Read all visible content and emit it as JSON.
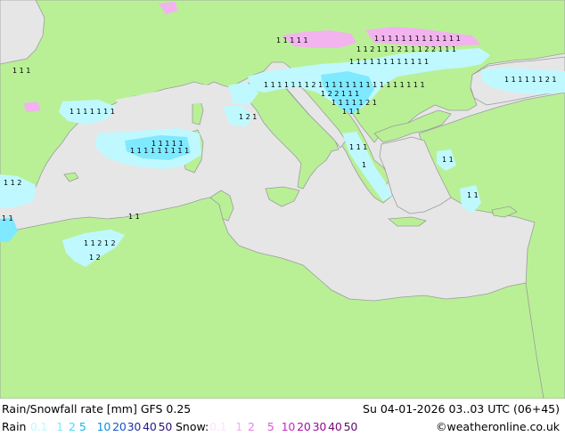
{
  "colors": {
    "sea": "#e6e6e6",
    "land": "#b9f096",
    "border": "#9c9c9c",
    "rain_light": "#bff9ff",
    "rain_medium": "#7fe9ff",
    "snow": "#f2b3ee",
    "marker": "#000000"
  },
  "title": "Rain/Snowfall rate [mm]  GFS 0.25",
  "datetime": "Su 04-01-2026 03..03 UTC (06+45)",
  "credit": "©weatheronline.co.uk",
  "rain_legend": {
    "label": "Rain",
    "values": [
      {
        "text": "0.1",
        "color": "#bff9ff"
      },
      {
        "text": "1",
        "color": "#7fe9ff"
      },
      {
        "text": "2",
        "color": "#47d8ff"
      },
      {
        "text": "5",
        "color": "#12b5f5"
      },
      {
        "text": "10",
        "color": "#0f8fe0"
      },
      {
        "text": "20",
        "color": "#1057c8"
      },
      {
        "text": "30",
        "color": "#1630a8"
      },
      {
        "text": "40",
        "color": "#231a8c"
      },
      {
        "text": "50",
        "color": "#2c0f6e"
      }
    ]
  },
  "snow_legend": {
    "label": "Snow:",
    "values": [
      {
        "text": "0.1",
        "color": "#fde2fb"
      },
      {
        "text": "1",
        "color": "#f2b3ee"
      },
      {
        "text": "2",
        "color": "#e684e3"
      },
      {
        "text": "5",
        "color": "#d755d6"
      },
      {
        "text": "10",
        "color": "#c12ac3"
      },
      {
        "text": "20",
        "color": "#a80faa"
      },
      {
        "text": "30",
        "color": "#8f0d90"
      },
      {
        "text": "40",
        "color": "#770b78"
      },
      {
        "text": "50",
        "color": "#5e085f"
      }
    ]
  }
}
